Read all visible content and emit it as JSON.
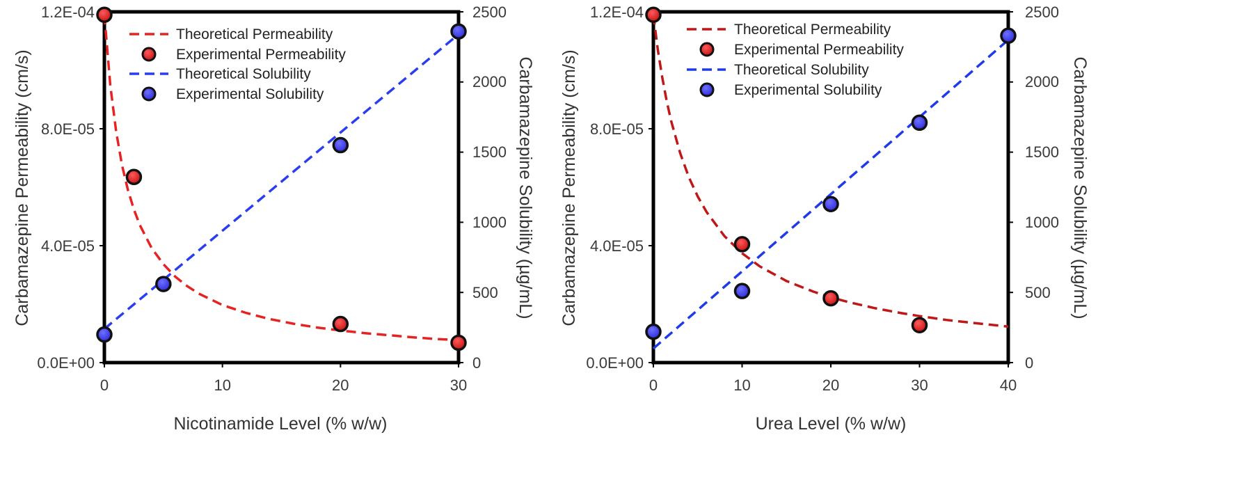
{
  "chart_data": [
    {
      "type": "scatter",
      "panel": "left",
      "xlabel": "Nicotinamide Level (% w/w)",
      "ylabel": "Carbamazepine Permeability (cm/s)",
      "y2label": "Carbamazepine Solubility (µg/mL)",
      "xlim": [
        0,
        30
      ],
      "ylim": [
        0,
        0.00012
      ],
      "y2lim": [
        0,
        2500
      ],
      "xticks": [
        0,
        10,
        20,
        30
      ],
      "xtick_labels": [
        "0",
        "10",
        "20",
        "30"
      ],
      "yticks": [
        0,
        4e-05,
        8e-05,
        0.00012
      ],
      "ytick_labels": [
        "0.0E+00",
        "4.0E-05",
        "8.0E-05",
        "1.2E-04"
      ],
      "y2ticks": [
        0,
        500,
        1000,
        1500,
        2000,
        2500
      ],
      "y2tick_labels": [
        "0",
        "500",
        "1000",
        "1500",
        "2000",
        "2500"
      ],
      "legend_position": "top-left",
      "series": [
        {
          "name": "Theoretical Permeability",
          "kind": "dashed-line",
          "axis": "left",
          "color": "#e62323",
          "x": [
            0,
            0.5,
            1,
            1.5,
            2,
            2.5,
            3,
            4,
            5,
            6,
            7,
            8,
            10,
            12,
            14,
            16,
            18,
            20,
            22,
            24,
            26,
            28,
            30
          ],
          "values": [
            0.000119,
            9.49e-05,
            7.89e-05,
            6.75e-05,
            5.9e-05,
            5.24e-05,
            4.71e-05,
            3.92e-05,
            3.37e-05,
            2.94e-05,
            2.62e-05,
            2.36e-05,
            1.97e-05,
            1.7e-05,
            1.49e-05,
            1.33e-05,
            1.2e-05,
            1.1e-05,
            1.01e-05,
            9.4e-06,
            8.7e-06,
            8.1e-06,
            7.7e-06
          ]
        },
        {
          "name": "Experimental Permeability",
          "kind": "points",
          "axis": "left",
          "color": "#e21a1a",
          "x": [
            0,
            2.5,
            20,
            30
          ],
          "values": [
            0.000119,
            6.35e-05,
            1.32e-05,
            6.8e-06
          ]
        },
        {
          "name": "Theoretical Solubility",
          "kind": "dashed-line",
          "axis": "right",
          "color": "#2a3ef0",
          "x": [
            0,
            30
          ],
          "values": [
            240,
            2340
          ]
        },
        {
          "name": "Experimental Solubility",
          "kind": "points",
          "axis": "right",
          "color": "#3a3af0",
          "x": [
            0,
            5,
            20,
            30
          ],
          "values": [
            200,
            560,
            1550,
            2360
          ]
        }
      ]
    },
    {
      "type": "scatter",
      "panel": "right",
      "xlabel": "Urea Level (% w/w)",
      "ylabel": "Carbamazepine Permeability (cm/s)",
      "y2label": "Carbamazepine Solubility (µg/mL)",
      "xlim": [
        0,
        40
      ],
      "ylim": [
        0,
        0.00012
      ],
      "y2lim": [
        0,
        2500
      ],
      "xticks": [
        0,
        10,
        20,
        30,
        40
      ],
      "xtick_labels": [
        "0",
        "10",
        "20",
        "30",
        "40"
      ],
      "yticks": [
        0,
        4e-05,
        8e-05,
        0.00012
      ],
      "ytick_labels": [
        "0.0E+00",
        "4.0E-05",
        "8.0E-05",
        "1.2E-04"
      ],
      "y2ticks": [
        0,
        500,
        1000,
        1500,
        2000,
        2500
      ],
      "y2tick_labels": [
        "0",
        "500",
        "1000",
        "1500",
        "2000",
        "2500"
      ],
      "legend_position": "top-left",
      "series": [
        {
          "name": "Theoretical Permeability",
          "kind": "dashed-line",
          "axis": "left",
          "color": "#c01818",
          "x": [
            0,
            0.5,
            1,
            1.5,
            2,
            3,
            4,
            5,
            6,
            8,
            10,
            12,
            15,
            18,
            20,
            22,
            25,
            28,
            30,
            33,
            36,
            40
          ],
          "values": [
            0.000119,
            0.000107,
            9.75e-05,
            8.95e-05,
            8.27e-05,
            7.18e-05,
            6.34e-05,
            5.68e-05,
            5.15e-05,
            4.33e-05,
            3.74e-05,
            3.29e-05,
            2.79e-05,
            2.43e-05,
            2.23e-05,
            2.07e-05,
            1.86e-05,
            1.69e-05,
            1.59e-05,
            1.46e-05,
            1.36e-05,
            1.23e-05
          ]
        },
        {
          "name": "Experimental Permeability",
          "kind": "points",
          "axis": "left",
          "color": "#c41414",
          "x": [
            0,
            10,
            20,
            30
          ],
          "values": [
            0.000119,
            4.05e-05,
            2.2e-05,
            1.28e-05
          ]
        },
        {
          "name": "Theoretical Solubility",
          "kind": "dashed-line",
          "axis": "right",
          "color": "#1f3be8",
          "x": [
            0,
            40
          ],
          "values": [
            100,
            2300
          ]
        },
        {
          "name": "Experimental Solubility",
          "kind": "points",
          "axis": "right",
          "color": "#3a3af0",
          "x": [
            0,
            10,
            20,
            30,
            40
          ],
          "values": [
            220,
            510,
            1130,
            1710,
            2330
          ]
        }
      ]
    }
  ]
}
